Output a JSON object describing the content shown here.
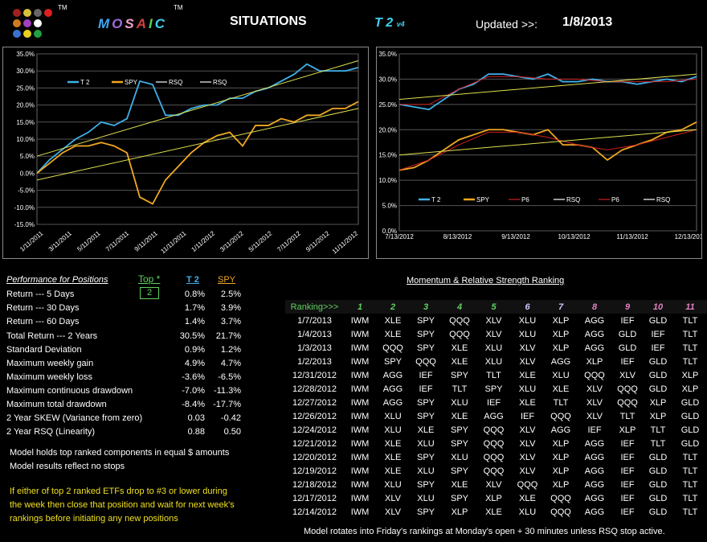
{
  "header": {
    "tm1": "TM",
    "tm2": "TM",
    "brand_letters": [
      "M",
      "O",
      "S",
      "A",
      "I",
      "C"
    ],
    "brand_colors": [
      "#3fa9f5",
      "#a06bd8",
      "#f0a0c8",
      "#d04040",
      "#58d158",
      "#3fd0f0"
    ],
    "title": "SITUATIONS",
    "version_main": "T 2",
    "version_small": "v4",
    "updated_label": "Updated >>:",
    "updated_date": "1/8/2013",
    "logo_colors": [
      "#a02020",
      "#d6c23a",
      "#666666",
      "#d07a20",
      "#a040c0",
      "#ffffff",
      "#3a72d0",
      "#e8d020",
      "#20a040",
      "#e02020"
    ]
  },
  "chart_data": [
    {
      "type": "line",
      "title": "",
      "xlabel": "",
      "ylabel": "",
      "ylim": [
        -15,
        35
      ],
      "yticks": [
        "35.0%",
        "30.0%",
        "25.0%",
        "20.0%",
        "15.0%",
        "10.0%",
        "5.0%",
        "0.0%",
        "-5.0%",
        "-10.0%",
        "-15.0%"
      ],
      "xticks": [
        "1/11/2011",
        "3/11/2011",
        "5/11/2011",
        "7/11/2011",
        "9/11/2011",
        "11/11/2011",
        "1/11/2012",
        "3/11/2012",
        "5/11/2012",
        "7/11/2012",
        "9/11/2012",
        "11/11/2012"
      ],
      "legend": [
        "T 2",
        "SPY",
        "RSQ",
        "RSQ"
      ],
      "legend_placement": "top-left",
      "series": [
        {
          "name": "T 2",
          "color": "#3fb0e8",
          "x": [
            0,
            4,
            8,
            12,
            16,
            20,
            24,
            28,
            32,
            36,
            40,
            44,
            48,
            52,
            56,
            60,
            64,
            68,
            72,
            76,
            80,
            84,
            88,
            92,
            96,
            100
          ],
          "values": [
            0,
            4,
            7,
            10,
            12,
            15,
            14,
            16,
            27,
            26,
            17,
            17,
            19,
            20,
            20,
            22,
            22,
            24,
            25,
            27,
            29,
            32,
            30,
            30,
            30,
            31
          ]
        },
        {
          "name": "SPY",
          "color": "#f0a820",
          "x": [
            0,
            4,
            8,
            12,
            16,
            20,
            24,
            28,
            32,
            36,
            40,
            44,
            48,
            52,
            56,
            60,
            64,
            68,
            72,
            76,
            80,
            84,
            88,
            92,
            96,
            100
          ],
          "values": [
            0,
            3,
            6,
            8,
            8,
            9,
            8,
            6,
            -7,
            -9,
            -2,
            2,
            6,
            9,
            11,
            12,
            8,
            14,
            14,
            16,
            15,
            17,
            17,
            19,
            19,
            21
          ]
        },
        {
          "name": "RSQ",
          "color": "#e0e050",
          "x": [
            0,
            100
          ],
          "values": [
            5,
            33
          ]
        },
        {
          "name": "RSQ",
          "color": "#e0e050",
          "x": [
            0,
            100
          ],
          "values": [
            -2,
            19
          ]
        }
      ]
    },
    {
      "type": "line",
      "title": "",
      "xlabel": "",
      "ylabel": "",
      "ylim": [
        0,
        35
      ],
      "yticks": [
        "35.0%",
        "30.0%",
        "25.0%",
        "20.0%",
        "15.0%",
        "10.0%",
        "5.0%",
        "0.0%"
      ],
      "xticks": [
        "7/13/2012",
        "8/13/2012",
        "9/13/2012",
        "10/13/2012",
        "11/13/2012",
        "12/13/2012"
      ],
      "legend": [
        "T 2",
        "SPY",
        "P6",
        "RSQ",
        "P6",
        "RSQ"
      ],
      "legend_placement": "bottom",
      "series": [
        {
          "name": "T 2",
          "color": "#3fb0e8",
          "x": [
            0,
            5,
            10,
            15,
            20,
            25,
            30,
            35,
            40,
            45,
            50,
            55,
            60,
            65,
            70,
            75,
            80,
            85,
            90,
            95,
            100
          ],
          "values": [
            25,
            24.5,
            24,
            26,
            28,
            29,
            31,
            31,
            30.5,
            30,
            31,
            29.5,
            29.5,
            30,
            29.5,
            29.5,
            29,
            29.5,
            30,
            29.5,
            30.5
          ]
        },
        {
          "name": "SPY",
          "color": "#f0a820",
          "x": [
            0,
            5,
            10,
            15,
            20,
            25,
            30,
            35,
            40,
            45,
            50,
            55,
            60,
            65,
            70,
            75,
            80,
            85,
            90,
            95,
            100
          ],
          "values": [
            12,
            12.5,
            14,
            16,
            18,
            19,
            20,
            20,
            19.5,
            19,
            20,
            17,
            17,
            16.5,
            14,
            16,
            17,
            18,
            19.5,
            20,
            21.5
          ]
        },
        {
          "name": "P6",
          "color": "#d02020",
          "x": [
            0,
            10,
            20,
            30,
            40,
            50,
            60,
            70,
            80,
            90,
            100
          ],
          "values": [
            25,
            25,
            28,
            30.5,
            30.5,
            30,
            30,
            29.5,
            29.5,
            29.5,
            30
          ]
        },
        {
          "name": "RSQ",
          "color": "#e0e050",
          "x": [
            0,
            100
          ],
          "values": [
            26,
            31
          ]
        },
        {
          "name": "P6",
          "color": "#d02020",
          "x": [
            0,
            10,
            20,
            30,
            40,
            50,
            60,
            70,
            80,
            90,
            100
          ],
          "values": [
            12,
            14,
            17,
            19.5,
            19.5,
            18.5,
            17,
            16,
            17,
            18.5,
            20
          ]
        },
        {
          "name": "RSQ",
          "color": "#e0e050",
          "x": [
            0,
            100
          ],
          "values": [
            15,
            20
          ]
        }
      ]
    }
  ],
  "performance": {
    "heading": "Performance for Positions",
    "top_label": "Top *",
    "top_value": "2",
    "col1": "T 2",
    "col2": "SPY",
    "rows": [
      {
        "label": "Return --- 5 Days",
        "t2": "0.8%",
        "spy": "2.5%"
      },
      {
        "label": "Return --- 30 Days",
        "t2": "1.7%",
        "spy": "3.9%"
      },
      {
        "label": "Return --- 60 Days",
        "t2": "1.4%",
        "spy": "3.7%"
      },
      {
        "label": "Total Return --- 2 Years",
        "t2": "30.5%",
        "spy": "21.7%"
      },
      {
        "label": "Standard Deviation",
        "t2": "0.9%",
        "spy": "1.2%"
      },
      {
        "label": "Maximum weekly gain",
        "t2": "4.9%",
        "spy": "4.7%"
      },
      {
        "label": "Maximum weekly loss",
        "t2": "-3.6%",
        "spy": "-6.5%"
      },
      {
        "label": "Maximum continuous drawdown",
        "t2": "-7.0%",
        "spy": "-11.3%"
      },
      {
        "label": "Maximum total drawdown",
        "t2": "-8.4%",
        "spy": "-17.7%"
      },
      {
        "label": "2 Year SKEW  (Variance from zero)",
        "t2": "0.03",
        "spy": "-0.42"
      },
      {
        "label": "2 Year RSQ  (Linearity)",
        "t2": "0.88",
        "spy": "0.50"
      }
    ],
    "notes_white": [
      "Model holds top ranked  components in equal  $ amounts",
      "Model results reflect no stops"
    ],
    "notes_yellow": [
      "If either of top 2 ranked ETFs drop to #3 or lower during",
      "the week then close that position and wait for next week's",
      "rankings before initiating any new positions"
    ]
  },
  "ranking": {
    "heading": "Momentum & Relative Strength Ranking",
    "label": "Ranking>>>",
    "columns": [
      "1",
      "2",
      "3",
      "4",
      "5",
      "6",
      "7",
      "8",
      "9",
      "10",
      "11"
    ],
    "col_colors": [
      "#5fd05f",
      "#5fd05f",
      "#5fd05f",
      "#5fd05f",
      "#5fd05f",
      "#c8c8ff",
      "#c8c8ff",
      "#e080c0",
      "#e080c0",
      "#e080c0",
      "#e080c0"
    ],
    "rows": [
      {
        "date": "1/7/2013",
        "r": [
          "IWM",
          "XLE",
          "SPY",
          "QQQ",
          "XLV",
          "XLU",
          "XLP",
          "AGG",
          "IEF",
          "GLD",
          "TLT"
        ]
      },
      {
        "date": "1/4/2013",
        "r": [
          "IWM",
          "XLE",
          "SPY",
          "QQQ",
          "XLV",
          "XLU",
          "XLP",
          "AGG",
          "GLD",
          "IEF",
          "TLT"
        ]
      },
      {
        "date": "1/3/2013",
        "r": [
          "IWM",
          "QQQ",
          "SPY",
          "XLE",
          "XLU",
          "XLV",
          "XLP",
          "AGG",
          "GLD",
          "IEF",
          "TLT"
        ]
      },
      {
        "date": "1/2/2013",
        "r": [
          "IWM",
          "SPY",
          "QQQ",
          "XLE",
          "XLU",
          "XLV",
          "AGG",
          "XLP",
          "IEF",
          "GLD",
          "TLT"
        ]
      },
      {
        "date": "12/31/2012",
        "r": [
          "IWM",
          "AGG",
          "IEF",
          "SPY",
          "TLT",
          "XLE",
          "XLU",
          "QQQ",
          "XLV",
          "GLD",
          "XLP"
        ]
      },
      {
        "date": "12/28/2012",
        "r": [
          "IWM",
          "AGG",
          "IEF",
          "TLT",
          "SPY",
          "XLU",
          "XLE",
          "XLV",
          "QQQ",
          "GLD",
          "XLP"
        ]
      },
      {
        "date": "12/27/2012",
        "r": [
          "IWM",
          "AGG",
          "SPY",
          "XLU",
          "IEF",
          "XLE",
          "TLT",
          "XLV",
          "QQQ",
          "XLP",
          "GLD"
        ]
      },
      {
        "date": "12/26/2012",
        "r": [
          "IWM",
          "XLU",
          "SPY",
          "XLE",
          "AGG",
          "IEF",
          "QQQ",
          "XLV",
          "TLT",
          "XLP",
          "GLD"
        ]
      },
      {
        "date": "12/24/2012",
        "r": [
          "IWM",
          "XLU",
          "XLE",
          "SPY",
          "QQQ",
          "XLV",
          "AGG",
          "IEF",
          "XLP",
          "TLT",
          "GLD"
        ]
      },
      {
        "date": "12/21/2012",
        "r": [
          "IWM",
          "XLE",
          "XLU",
          "SPY",
          "QQQ",
          "XLV",
          "XLP",
          "AGG",
          "IEF",
          "TLT",
          "GLD"
        ]
      },
      {
        "date": "12/20/2012",
        "r": [
          "IWM",
          "XLE",
          "SPY",
          "XLU",
          "QQQ",
          "XLV",
          "XLP",
          "AGG",
          "IEF",
          "GLD",
          "TLT"
        ]
      },
      {
        "date": "12/19/2012",
        "r": [
          "IWM",
          "XLE",
          "XLU",
          "SPY",
          "QQQ",
          "XLV",
          "XLP",
          "AGG",
          "IEF",
          "GLD",
          "TLT"
        ]
      },
      {
        "date": "12/18/2012",
        "r": [
          "IWM",
          "XLU",
          "SPY",
          "XLE",
          "XLV",
          "QQQ",
          "XLP",
          "AGG",
          "IEF",
          "GLD",
          "TLT"
        ]
      },
      {
        "date": "12/17/2012",
        "r": [
          "IWM",
          "XLV",
          "XLU",
          "SPY",
          "XLP",
          "XLE",
          "QQQ",
          "AGG",
          "IEF",
          "GLD",
          "TLT"
        ]
      },
      {
        "date": "12/14/2012",
        "r": [
          "IWM",
          "XLV",
          "SPY",
          "XLP",
          "XLE",
          "XLU",
          "QQQ",
          "AGG",
          "IEF",
          "GLD",
          "TLT"
        ]
      }
    ],
    "footer": "Model rotates into Friday's rankings at Monday's open + 30 minutes unless RSQ stop active."
  }
}
